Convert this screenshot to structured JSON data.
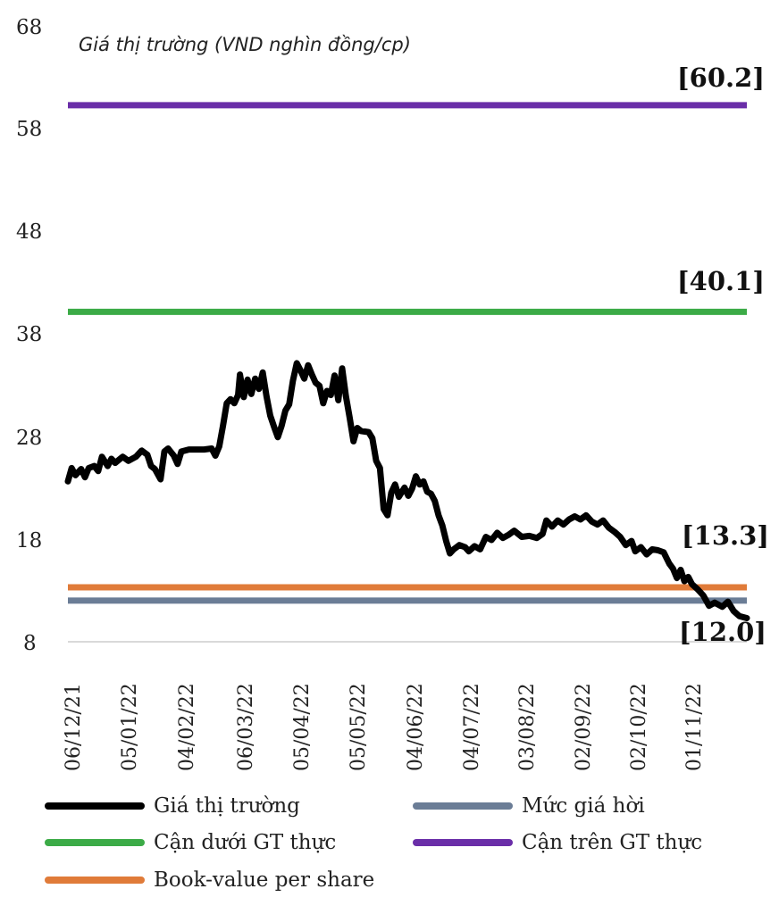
{
  "chart_data": {
    "type": "line",
    "subtitle": "Giá thị trường (VND nghìn đồng/cp)",
    "ylim": [
      8,
      68
    ],
    "yticks": [
      "68",
      "58",
      "48",
      "38",
      "28",
      "18",
      "8"
    ],
    "ytick_values": [
      68,
      58,
      48,
      38,
      28,
      18,
      8
    ],
    "xticks": [
      "06/12/21",
      "05/01/22",
      "04/02/22",
      "06/03/22",
      "05/04/22",
      "05/05/22",
      "04/06/22",
      "04/07/22",
      "03/08/22",
      "02/09/22",
      "02/10/22",
      "01/11/22"
    ],
    "x_range": [
      "06/12/21",
      "30/11/22"
    ],
    "grid": false,
    "legend_position": "bottom",
    "series": [
      {
        "name": "Giá thị trường",
        "color": "#000000",
        "points": [
          [
            "06/12/21",
            23.6
          ],
          [
            "08/12/21",
            24.9
          ],
          [
            "10/12/21",
            24.2
          ],
          [
            "13/12/21",
            24.8
          ],
          [
            "15/12/21",
            24.0
          ],
          [
            "17/12/21",
            24.9
          ],
          [
            "20/12/21",
            25.1
          ],
          [
            "22/12/21",
            24.6
          ],
          [
            "24/12/21",
            26.0
          ],
          [
            "27/12/21",
            25.1
          ],
          [
            "29/12/21",
            25.8
          ],
          [
            "31/12/21",
            25.4
          ],
          [
            "04/01/22",
            26.0
          ],
          [
            "07/01/22",
            25.6
          ],
          [
            "11/01/22",
            26.0
          ],
          [
            "14/01/22",
            26.6
          ],
          [
            "17/01/22",
            26.2
          ],
          [
            "19/01/22",
            25.1
          ],
          [
            "21/01/22",
            24.8
          ],
          [
            "24/01/22",
            23.8
          ],
          [
            "26/01/22",
            26.5
          ],
          [
            "28/01/22",
            26.8
          ],
          [
            "31/01/22",
            26.1
          ],
          [
            "02/02/22",
            25.3
          ],
          [
            "04/02/22",
            26.5
          ],
          [
            "08/02/22",
            26.7
          ],
          [
            "12/02/22",
            26.7
          ],
          [
            "16/02/22",
            26.7
          ],
          [
            "20/02/22",
            26.8
          ],
          [
            "22/02/22",
            26.1
          ],
          [
            "24/02/22",
            27.0
          ],
          [
            "26/02/22",
            29.0
          ],
          [
            "28/02/22",
            31.2
          ],
          [
            "02/03/22",
            31.6
          ],
          [
            "04/03/22",
            31.2
          ],
          [
            "06/03/22",
            32.0
          ],
          [
            "07/03/22",
            34.0
          ],
          [
            "09/03/22",
            31.8
          ],
          [
            "11/03/22",
            33.5
          ],
          [
            "13/03/22",
            32.1
          ],
          [
            "15/03/22",
            33.6
          ],
          [
            "17/03/22",
            32.6
          ],
          [
            "19/03/22",
            34.2
          ],
          [
            "21/03/22",
            31.9
          ],
          [
            "23/03/22",
            30.0
          ],
          [
            "25/03/22",
            28.9
          ],
          [
            "27/03/22",
            27.9
          ],
          [
            "29/03/22",
            29.0
          ],
          [
            "31/03/22",
            30.5
          ],
          [
            "02/04/22",
            31.1
          ],
          [
            "04/04/22",
            33.4
          ],
          [
            "06/04/22",
            35.1
          ],
          [
            "08/04/22",
            34.4
          ],
          [
            "10/04/22",
            33.6
          ],
          [
            "12/04/22",
            34.9
          ],
          [
            "14/04/22",
            34.0
          ],
          [
            "16/04/22",
            33.2
          ],
          [
            "18/04/22",
            32.9
          ],
          [
            "20/04/22",
            31.2
          ],
          [
            "22/04/22",
            32.4
          ],
          [
            "24/04/22",
            32.0
          ],
          [
            "26/04/22",
            33.9
          ],
          [
            "28/04/22",
            31.5
          ],
          [
            "30/04/22",
            34.6
          ],
          [
            "02/05/22",
            31.9
          ],
          [
            "04/05/22",
            29.8
          ],
          [
            "06/05/22",
            27.5
          ],
          [
            "08/05/22",
            28.8
          ],
          [
            "10/05/22",
            28.5
          ],
          [
            "14/05/22",
            28.4
          ],
          [
            "16/05/22",
            27.8
          ],
          [
            "18/05/22",
            25.6
          ],
          [
            "20/05/22",
            24.9
          ],
          [
            "22/05/22",
            20.9
          ],
          [
            "24/05/22",
            20.3
          ],
          [
            "26/05/22",
            22.5
          ],
          [
            "28/05/22",
            23.3
          ],
          [
            "30/05/22",
            22.1
          ],
          [
            "02/06/22",
            23.0
          ],
          [
            "04/06/22",
            22.2
          ],
          [
            "06/06/22",
            22.9
          ],
          [
            "08/06/22",
            24.1
          ],
          [
            "10/06/22",
            23.3
          ],
          [
            "12/06/22",
            23.6
          ],
          [
            "14/06/22",
            22.6
          ],
          [
            "16/06/22",
            22.4
          ],
          [
            "18/06/22",
            21.7
          ],
          [
            "20/06/22",
            20.3
          ],
          [
            "22/06/22",
            19.3
          ],
          [
            "24/06/22",
            17.8
          ],
          [
            "26/06/22",
            16.6
          ],
          [
            "28/06/22",
            17.0
          ],
          [
            "01/07/22",
            17.4
          ],
          [
            "04/07/22",
            17.2
          ],
          [
            "06/07/22",
            16.8
          ],
          [
            "09/07/22",
            17.3
          ],
          [
            "12/07/22",
            17.0
          ],
          [
            "15/07/22",
            18.2
          ],
          [
            "18/07/22",
            17.9
          ],
          [
            "21/07/22",
            18.6
          ],
          [
            "24/07/22",
            18.1
          ],
          [
            "27/07/22",
            18.4
          ],
          [
            "30/07/22",
            18.8
          ],
          [
            "03/08/22",
            18.2
          ],
          [
            "07/08/22",
            18.3
          ],
          [
            "11/08/22",
            18.1
          ],
          [
            "14/08/22",
            18.5
          ],
          [
            "16/08/22",
            19.8
          ],
          [
            "19/08/22",
            19.2
          ],
          [
            "22/08/22",
            19.8
          ],
          [
            "25/08/22",
            19.4
          ],
          [
            "28/08/22",
            19.9
          ],
          [
            "31/08/22",
            20.2
          ],
          [
            "03/09/22",
            19.9
          ],
          [
            "06/09/22",
            20.3
          ],
          [
            "09/09/22",
            19.7
          ],
          [
            "12/09/22",
            19.4
          ],
          [
            "15/09/22",
            19.8
          ],
          [
            "18/09/22",
            19.1
          ],
          [
            "21/09/22",
            18.7
          ],
          [
            "24/09/22",
            18.2
          ],
          [
            "27/09/22",
            17.4
          ],
          [
            "30/09/22",
            17.8
          ],
          [
            "02/10/22",
            16.8
          ],
          [
            "05/10/22",
            17.2
          ],
          [
            "08/10/22",
            16.5
          ],
          [
            "11/10/22",
            17.0
          ],
          [
            "14/10/22",
            16.9
          ],
          [
            "17/10/22",
            16.7
          ],
          [
            "20/10/22",
            15.6
          ],
          [
            "22/10/22",
            15.1
          ],
          [
            "24/10/22",
            14.2
          ],
          [
            "26/10/22",
            15.0
          ],
          [
            "28/10/22",
            13.9
          ],
          [
            "30/10/22",
            14.3
          ],
          [
            "01/11/22",
            13.6
          ],
          [
            "04/11/22",
            13.1
          ],
          [
            "07/11/22",
            12.5
          ],
          [
            "10/11/22",
            11.5
          ],
          [
            "13/11/22",
            11.8
          ],
          [
            "17/11/22",
            11.4
          ],
          [
            "20/11/22",
            11.9
          ],
          [
            "23/11/22",
            11.0
          ],
          [
            "26/11/22",
            10.5
          ],
          [
            "30/11/22",
            10.3
          ]
        ]
      },
      {
        "name": "Mức giá hời",
        "color": "#6b7d96",
        "constant": 12.0
      },
      {
        "name": "Cận dưới GT thực",
        "color": "#3cab47",
        "constant": 40.1
      },
      {
        "name": "Cận trên GT thực",
        "color": "#6a2ea8",
        "constant": 60.2
      },
      {
        "name": "Book-value per share",
        "color": "#e07b39",
        "constant": 13.3
      }
    ],
    "annotations": [
      "[60.2]",
      "[40.1]",
      "[13.3]",
      "[12.0]"
    ]
  }
}
